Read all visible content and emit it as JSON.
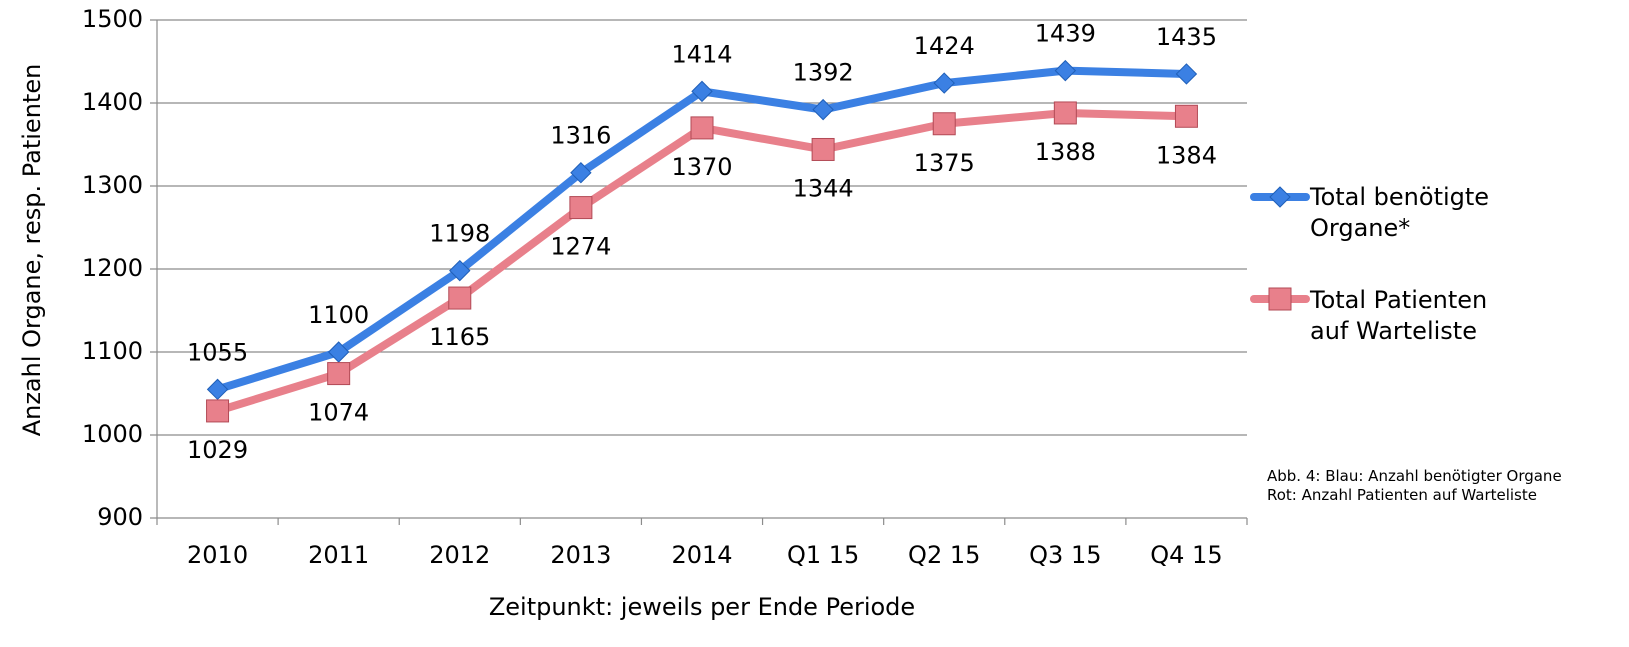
{
  "chart_data": {
    "type": "line",
    "y_label": "Anzahl Organe, resp. Patienten",
    "x_label": "Zeitpunkt: jeweils per Ende Periode",
    "categories": [
      "2010",
      "2011",
      "2012",
      "2013",
      "2014",
      "Q1 15",
      "Q2 15",
      "Q3 15",
      "Q4 15"
    ],
    "series": [
      {
        "name": "Total benötigte Organe*",
        "color": "#3b80e3",
        "marker": "diamond",
        "values": [
          1055,
          1100,
          1198,
          1316,
          1414,
          1392,
          1424,
          1439,
          1435
        ]
      },
      {
        "name": "Total Patienten auf Warteliste",
        "color": "#e8808b",
        "marker": "square",
        "values": [
          1029,
          1074,
          1165,
          1274,
          1370,
          1344,
          1375,
          1388,
          1384
        ]
      }
    ],
    "ylim": [
      900,
      1500
    ],
    "yticks": [
      900,
      1000,
      1100,
      1200,
      1300,
      1400,
      1500
    ],
    "grid": true,
    "legend": "right",
    "annotations": [
      "Abb. 4: Blau: Anzahl benötigter Organe",
      "Rot: Anzahl Patienten auf Warteliste"
    ]
  }
}
